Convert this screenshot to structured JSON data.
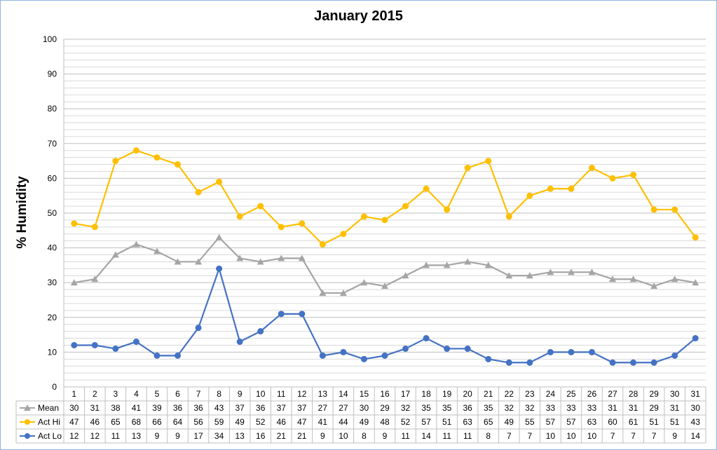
{
  "chart_data": {
    "type": "line",
    "title": "January 2015",
    "ylabel": "% Humidity",
    "xlabel": "",
    "ylim": [
      0,
      100
    ],
    "yticks": [
      0,
      10,
      20,
      30,
      40,
      50,
      60,
      70,
      80,
      90,
      100
    ],
    "grid": true,
    "legend": "data-table",
    "categories": [
      "1",
      "2",
      "3",
      "4",
      "5",
      "6",
      "7",
      "8",
      "9",
      "10",
      "11",
      "12",
      "13",
      "14",
      "15",
      "16",
      "17",
      "18",
      "19",
      "20",
      "21",
      "22",
      "23",
      "24",
      "25",
      "26",
      "27",
      "28",
      "29",
      "30",
      "31"
    ],
    "series": [
      {
        "name": "Mean",
        "color": "#a5a5a5",
        "marker": "triangle",
        "values": [
          30,
          31,
          38,
          41,
          39,
          36,
          36,
          43,
          37,
          36,
          37,
          37,
          27,
          27,
          30,
          29,
          32,
          35,
          35,
          36,
          35,
          32,
          32,
          33,
          33,
          33,
          31,
          31,
          29,
          31,
          30
        ]
      },
      {
        "name": "Act Hi",
        "color": "#ffc000",
        "marker": "circle",
        "values": [
          47,
          46,
          65,
          68,
          66,
          64,
          56,
          59,
          49,
          52,
          46,
          47,
          41,
          44,
          49,
          48,
          52,
          57,
          51,
          63,
          65,
          49,
          55,
          57,
          57,
          63,
          60,
          61,
          51,
          51,
          43
        ]
      },
      {
        "name": "Act Lo",
        "color": "#4472c4",
        "marker": "circle",
        "values": [
          12,
          12,
          11,
          13,
          9,
          9,
          17,
          34,
          13,
          16,
          21,
          21,
          9,
          10,
          8,
          9,
          11,
          14,
          11,
          11,
          8,
          7,
          7,
          10,
          10,
          10,
          7,
          7,
          7,
          9,
          14
        ]
      }
    ]
  }
}
